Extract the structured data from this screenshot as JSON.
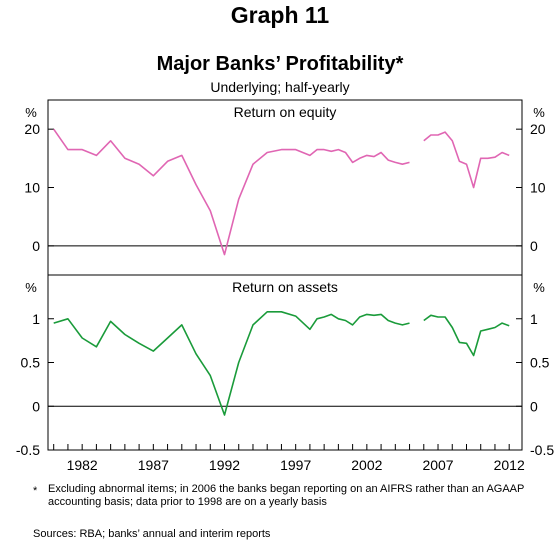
{
  "header": {
    "graph_label": "Graph 11",
    "title": "Major Banks’ Profitability*",
    "subtitle": "Underlying; half-yearly"
  },
  "footnote": {
    "marker": "*",
    "text": "Excluding abnormal items; in 2006 the banks began reporting on an AIFRS rather than an AGAAP accounting basis; data prior to 1998 are on a yearly basis"
  },
  "sources": "Sources: RBA; banks’ annual and interim reports",
  "colors": {
    "roe": "#e066b3",
    "roa": "#1a9b3a",
    "axis": "#000000"
  },
  "chart_data": [
    {
      "type": "line",
      "title": "Return on equity",
      "unit": "%",
      "ylim": [
        -5,
        25
      ],
      "yticks": [
        0,
        10,
        20
      ],
      "xlim": [
        1979.6,
        2012.9
      ],
      "grid": false,
      "series": [
        {
          "segment": "AGAAP",
          "points": [
            [
              1980,
              20
            ],
            [
              1981,
              16.5
            ],
            [
              1982,
              16.5
            ],
            [
              1983,
              15.5
            ],
            [
              1984,
              18
            ],
            [
              1985,
              15
            ],
            [
              1986,
              14
            ],
            [
              1987,
              12
            ],
            [
              1988,
              14.5
            ],
            [
              1989,
              15.5
            ],
            [
              1990,
              10.5
            ],
            [
              1991,
              6
            ],
            [
              1992,
              -1.5
            ],
            [
              1993,
              8
            ],
            [
              1994,
              14
            ],
            [
              1995,
              16
            ],
            [
              1996,
              16.5
            ],
            [
              1997,
              16.5
            ],
            [
              1998,
              15.5
            ],
            [
              1998.5,
              16.5
            ],
            [
              1999,
              16.5
            ],
            [
              1999.5,
              16.2
            ],
            [
              2000,
              16.5
            ],
            [
              2000.5,
              16
            ],
            [
              2001,
              14.3
            ],
            [
              2001.5,
              15
            ],
            [
              2002,
              15.5
            ],
            [
              2002.5,
              15.3
            ],
            [
              2003,
              16
            ],
            [
              2003.5,
              14.7
            ],
            [
              2004,
              14.3
            ],
            [
              2004.5,
              14
            ],
            [
              2005,
              14.3
            ]
          ]
        },
        {
          "segment": "AIFRS",
          "points": [
            [
              2006,
              18
            ],
            [
              2006.5,
              19
            ],
            [
              2007,
              19
            ],
            [
              2007.5,
              19.5
            ],
            [
              2008,
              18
            ],
            [
              2008.5,
              14.5
            ],
            [
              2009,
              14
            ],
            [
              2009.5,
              10
            ],
            [
              2010,
              15
            ],
            [
              2010.5,
              15
            ],
            [
              2011,
              15.2
            ],
            [
              2011.5,
              16
            ],
            [
              2012,
              15.5
            ]
          ]
        }
      ]
    },
    {
      "type": "line",
      "title": "Return on assets",
      "unit": "%",
      "ylim": [
        -0.5,
        1.5
      ],
      "yticks": [
        -0.5,
        0,
        0.5,
        1
      ],
      "ytick_labels": [
        "-0.5",
        "0",
        "0.5",
        "1"
      ],
      "xlim": [
        1979.6,
        2012.9
      ],
      "xticks": [
        1982,
        1987,
        1992,
        1997,
        2002,
        2007,
        2012
      ],
      "grid": false,
      "series": [
        {
          "segment": "AGAAP",
          "points": [
            [
              1980,
              0.95
            ],
            [
              1981,
              1
            ],
            [
              1982,
              0.78
            ],
            [
              1983,
              0.68
            ],
            [
              1984,
              0.97
            ],
            [
              1985,
              0.82
            ],
            [
              1986,
              0.72
            ],
            [
              1987,
              0.63
            ],
            [
              1988,
              0.78
            ],
            [
              1989,
              0.93
            ],
            [
              1990,
              0.6
            ],
            [
              1991,
              0.35
            ],
            [
              1992,
              -0.1
            ],
            [
              1993,
              0.5
            ],
            [
              1994,
              0.93
            ],
            [
              1995,
              1.08
            ],
            [
              1996,
              1.08
            ],
            [
              1997,
              1.03
            ],
            [
              1998,
              0.88
            ],
            [
              1998.5,
              1
            ],
            [
              1999,
              1.02
            ],
            [
              1999.5,
              1.05
            ],
            [
              2000,
              1
            ],
            [
              2000.5,
              0.98
            ],
            [
              2001,
              0.93
            ],
            [
              2001.5,
              1.02
            ],
            [
              2002,
              1.05
            ],
            [
              2002.5,
              1.04
            ],
            [
              2003,
              1.05
            ],
            [
              2003.5,
              0.98
            ],
            [
              2004,
              0.95
            ],
            [
              2004.5,
              0.93
            ],
            [
              2005,
              0.95
            ]
          ]
        },
        {
          "segment": "AIFRS",
          "points": [
            [
              2006,
              0.98
            ],
            [
              2006.5,
              1.04
            ],
            [
              2007,
              1.02
            ],
            [
              2007.5,
              1.02
            ],
            [
              2008,
              0.9
            ],
            [
              2008.5,
              0.73
            ],
            [
              2009,
              0.72
            ],
            [
              2009.5,
              0.58
            ],
            [
              2010,
              0.86
            ],
            [
              2010.5,
              0.88
            ],
            [
              2011,
              0.9
            ],
            [
              2011.5,
              0.95
            ],
            [
              2012,
              0.92
            ]
          ]
        }
      ]
    }
  ]
}
